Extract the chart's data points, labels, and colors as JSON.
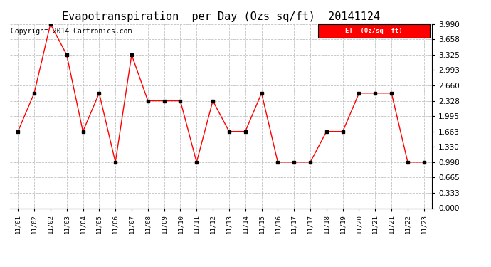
{
  "title": "Evapotranspiration  per Day (Ozs sq/ft)  20141124",
  "copyright": "Copyright 2014 Cartronics.com",
  "legend_label": "ET  (0z/sq  ft)",
  "x_tick_labels": [
    "11/01",
    "11/02",
    "11/02",
    "11/03",
    "11/04",
    "11/05",
    "11/06",
    "11/07",
    "11/08",
    "11/09",
    "11/10",
    "11/11",
    "11/12",
    "11/13",
    "11/14",
    "11/15",
    "11/16",
    "11/17",
    "11/17",
    "11/18",
    "11/19",
    "11/20",
    "11/21",
    "11/21",
    "11/22",
    "11/23"
  ],
  "y_values": [
    1.663,
    2.494,
    3.99,
    3.325,
    1.663,
    2.494,
    0.998,
    3.325,
    2.328,
    2.328,
    2.328,
    0.998,
    2.328,
    1.663,
    1.663,
    2.494,
    0.998,
    0.998,
    0.998,
    1.663,
    1.663,
    2.494,
    2.494,
    2.494,
    0.998,
    0.998
  ],
  "yticks": [
    0.0,
    0.333,
    0.665,
    0.998,
    1.33,
    1.663,
    1.995,
    2.328,
    2.66,
    2.993,
    3.325,
    3.658,
    3.99
  ],
  "ylim": [
    0.0,
    3.99
  ],
  "line_color": "red",
  "marker_color": "black",
  "bg_color": "#ffffff",
  "grid_color": "#bbbbbb",
  "title_fontsize": 11,
  "copyright_fontsize": 7,
  "legend_bg": "red",
  "legend_text_color": "white",
  "tick_fontsize": 7.5,
  "xtick_fontsize": 6.5
}
